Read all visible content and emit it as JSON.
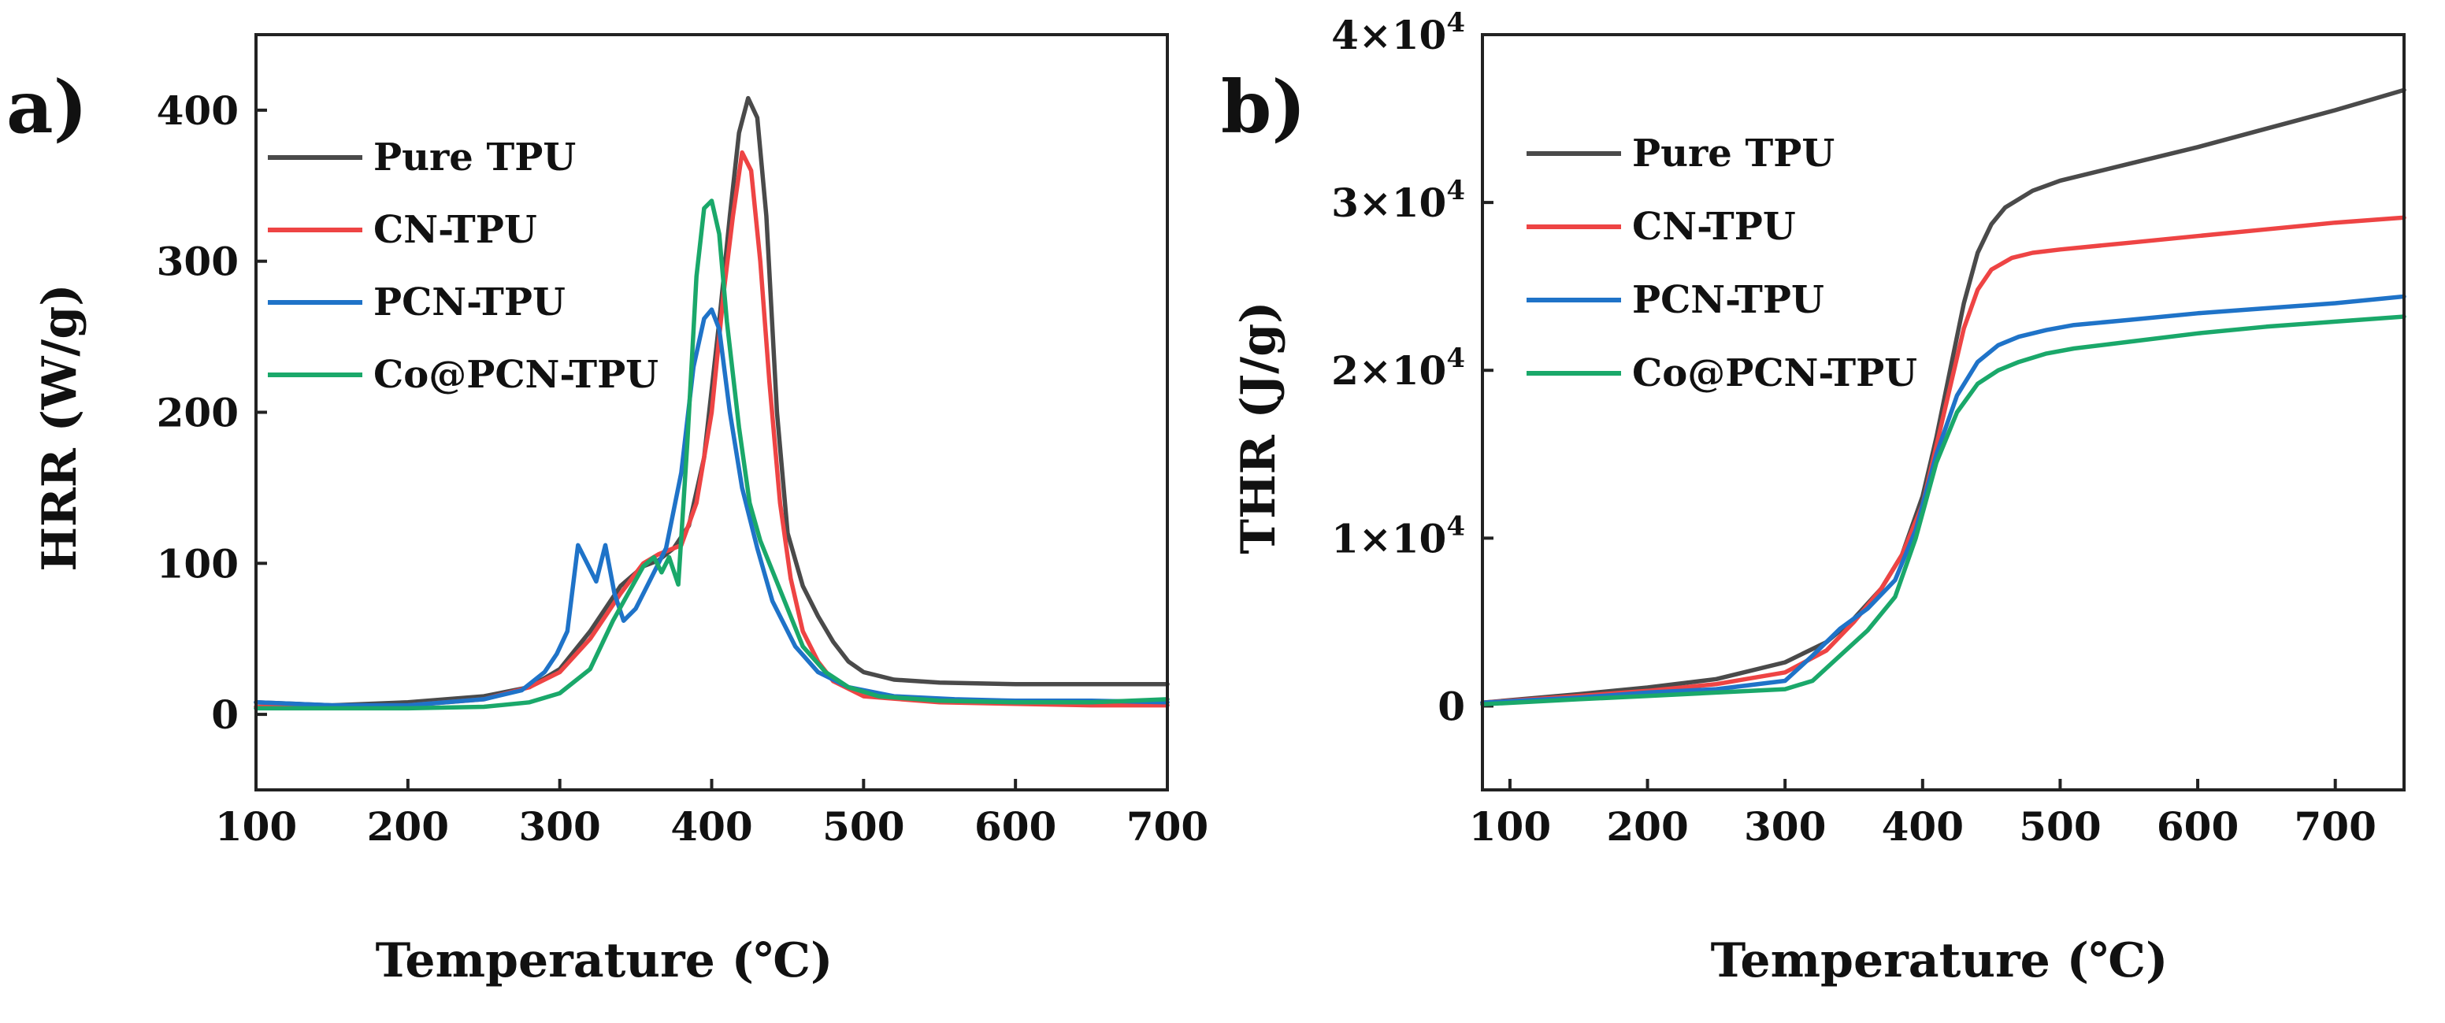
{
  "figure": {
    "colors": {
      "pure_tpu": "#4a4a4a",
      "cn_tpu": "#ee4444",
      "pcn_tpu": "#1f73c8",
      "co_pcn_tpu": "#1aa86a",
      "axis": "#222222",
      "background": "#ffffff"
    }
  },
  "chart_data": [
    {
      "panel_label": "a)",
      "type": "line",
      "xlabel": "Temperature (℃)",
      "ylabel": "HRR (W/g)",
      "xlim": [
        100,
        700
      ],
      "ylim": [
        -50,
        450
      ],
      "xticks": [
        100,
        200,
        300,
        400,
        500,
        600,
        700
      ],
      "xtick_labels": [
        "100",
        "200",
        "300",
        "400",
        "500",
        "600",
        "700"
      ],
      "yticks": [
        0,
        100,
        200,
        300,
        400
      ],
      "ytick_labels": [
        "0",
        "100",
        "200",
        "300",
        "400"
      ],
      "legend_position": "top-left",
      "series": [
        {
          "name": "Pure TPU",
          "color_key": "pure_tpu",
          "x": [
            100,
            150,
            200,
            250,
            280,
            300,
            320,
            340,
            355,
            365,
            375,
            385,
            395,
            405,
            412,
            418,
            424,
            430,
            436,
            443,
            450,
            460,
            470,
            480,
            490,
            500,
            520,
            550,
            600,
            650,
            700
          ],
          "y": [
            8,
            6,
            8,
            12,
            18,
            30,
            55,
            85,
            98,
            102,
            110,
            125,
            170,
            260,
            330,
            385,
            408,
            395,
            330,
            200,
            120,
            85,
            65,
            48,
            35,
            28,
            23,
            21,
            20,
            20,
            20
          ]
        },
        {
          "name": "CN-TPU",
          "color_key": "cn_tpu",
          "x": [
            100,
            150,
            200,
            250,
            280,
            300,
            320,
            340,
            355,
            365,
            380,
            390,
            400,
            408,
            414,
            420,
            426,
            432,
            438,
            445,
            452,
            460,
            470,
            480,
            500,
            550,
            600,
            650,
            700
          ],
          "y": [
            5,
            5,
            6,
            10,
            18,
            28,
            50,
            80,
            100,
            106,
            112,
            140,
            200,
            280,
            330,
            372,
            360,
            300,
            220,
            140,
            90,
            55,
            35,
            22,
            12,
            8,
            7,
            6,
            6
          ]
        },
        {
          "name": "PCN-TPU",
          "color_key": "pcn_tpu",
          "x": [
            100,
            150,
            200,
            250,
            275,
            290,
            298,
            305,
            312,
            318,
            324,
            330,
            336,
            342,
            350,
            360,
            370,
            380,
            388,
            395,
            400,
            405,
            412,
            420,
            430,
            440,
            455,
            470,
            490,
            520,
            560,
            600,
            650,
            700
          ],
          "y": [
            8,
            6,
            6,
            10,
            16,
            28,
            40,
            55,
            112,
            100,
            88,
            112,
            80,
            62,
            70,
            90,
            110,
            160,
            230,
            262,
            268,
            255,
            200,
            150,
            110,
            75,
            45,
            28,
            18,
            12,
            10,
            9,
            9,
            8
          ]
        },
        {
          "name": "Co@PCN-TPU",
          "color_key": "co_pcn_tpu",
          "x": [
            100,
            150,
            200,
            250,
            280,
            300,
            320,
            335,
            345,
            355,
            362,
            367,
            372,
            378,
            384,
            390,
            395,
            400,
            405,
            410,
            418,
            425,
            432,
            440,
            450,
            460,
            475,
            490,
            510,
            550,
            600,
            650,
            700
          ],
          "y": [
            4,
            4,
            4,
            5,
            8,
            14,
            30,
            62,
            80,
            98,
            104,
            94,
            104,
            86,
            180,
            290,
            335,
            340,
            318,
            260,
            190,
            140,
            115,
            95,
            70,
            45,
            28,
            18,
            12,
            9,
            8,
            8,
            10
          ]
        }
      ]
    },
    {
      "panel_label": "b)",
      "type": "line",
      "xlabel": "Temperature (℃)",
      "ylabel": "THR (J/g)",
      "xlim": [
        80,
        750
      ],
      "ylim": [
        -5000,
        40000
      ],
      "xticks": [
        100,
        200,
        300,
        400,
        500,
        600,
        700
      ],
      "xtick_labels": [
        "100",
        "200",
        "300",
        "400",
        "500",
        "600",
        "700"
      ],
      "yticks": [
        0,
        10000,
        20000,
        30000,
        40000
      ],
      "ytick_labels": [
        {
          "base": "0",
          "exp": ""
        },
        {
          "base": "1×10",
          "exp": "4"
        },
        {
          "base": "2×10",
          "exp": "4"
        },
        {
          "base": "3×10",
          "exp": "4"
        },
        {
          "base": "4×10",
          "exp": "4"
        }
      ],
      "legend_position": "top-left",
      "series": [
        {
          "name": "Pure TPU",
          "color_key": "pure_tpu",
          "x": [
            80,
            150,
            200,
            250,
            300,
            330,
            350,
            370,
            385,
            400,
            410,
            420,
            430,
            440,
            450,
            460,
            480,
            500,
            550,
            600,
            650,
            700,
            750
          ],
          "y": [
            200,
            700,
            1100,
            1600,
            2600,
            3800,
            5200,
            7000,
            9000,
            12500,
            16000,
            20000,
            24000,
            27000,
            28700,
            29700,
            30700,
            31300,
            32300,
            33300,
            34400,
            35500,
            36700
          ]
        },
        {
          "name": "CN-TPU",
          "color_key": "cn_tpu",
          "x": [
            80,
            150,
            200,
            250,
            300,
            330,
            350,
            370,
            385,
            400,
            410,
            420,
            430,
            440,
            450,
            465,
            480,
            500,
            550,
            600,
            650,
            700,
            750
          ],
          "y": [
            200,
            600,
            900,
            1300,
            2000,
            3300,
            5000,
            7000,
            9000,
            12000,
            15500,
            19000,
            22500,
            24800,
            26000,
            26700,
            27000,
            27200,
            27600,
            28000,
            28400,
            28800,
            29100
          ]
        },
        {
          "name": "PCN-TPU",
          "color_key": "pcn_tpu",
          "x": [
            80,
            150,
            200,
            250,
            300,
            320,
            340,
            360,
            380,
            395,
            410,
            425,
            440,
            455,
            470,
            490,
            510,
            550,
            600,
            650,
            700,
            750
          ],
          "y": [
            200,
            500,
            800,
            1000,
            1500,
            3000,
            4600,
            5800,
            7500,
            10500,
            15000,
            18500,
            20500,
            21500,
            22000,
            22400,
            22700,
            23000,
            23400,
            23700,
            24000,
            24400
          ]
        },
        {
          "name": "Co@PCN-TPU",
          "color_key": "co_pcn_tpu",
          "x": [
            80,
            150,
            200,
            250,
            300,
            320,
            340,
            360,
            380,
            395,
            410,
            425,
            440,
            455,
            470,
            490,
            510,
            550,
            600,
            650,
            700,
            750
          ],
          "y": [
            100,
            400,
            600,
            800,
            1000,
            1500,
            3000,
            4500,
            6500,
            10000,
            14500,
            17500,
            19200,
            20000,
            20500,
            21000,
            21300,
            21700,
            22200,
            22600,
            22900,
            23200
          ]
        }
      ]
    }
  ]
}
